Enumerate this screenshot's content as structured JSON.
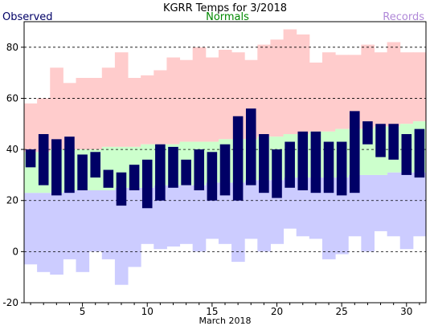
{
  "chart_data": {
    "type": "bar",
    "title": "KGRR Temps for 3/2018",
    "xlabel": "March 2018",
    "ylabel": "",
    "legend": {
      "observed": "Observed",
      "normals": "Normals",
      "records": "Records"
    },
    "colors": {
      "observed": "#000066",
      "normals": "#ccffcc",
      "records": "#ffcccc",
      "records_low": "#ccccff",
      "observed_label": "#000066",
      "normals_label": "#008800",
      "records_label": "#b088d8"
    },
    "ylim": [
      -20,
      90
    ],
    "xlim": [
      0.5,
      31.5
    ],
    "yticks": [
      -20,
      0,
      20,
      40,
      60,
      80
    ],
    "xticks": [
      5,
      10,
      15,
      20,
      25,
      30
    ],
    "grid": "dashed horizontal at 0, 20, 40, 60, 80",
    "days": [
      1,
      2,
      3,
      4,
      5,
      6,
      7,
      8,
      9,
      10,
      11,
      12,
      13,
      14,
      15,
      16,
      17,
      18,
      19,
      20,
      21,
      22,
      23,
      24,
      25,
      26,
      27,
      28,
      29,
      30,
      31
    ],
    "record_high": [
      58,
      60,
      72,
      66,
      68,
      68,
      72,
      78,
      68,
      69,
      71,
      76,
      75,
      80,
      76,
      79,
      78,
      75,
      81,
      83,
      87,
      85,
      74,
      78,
      77,
      77,
      81,
      78,
      82,
      78,
      78
    ],
    "record_low": [
      -5,
      -8,
      -9,
      -3,
      -8,
      0,
      -3,
      -13,
      -6,
      3,
      1,
      2,
      3,
      0,
      5,
      3,
      -4,
      5,
      0,
      3,
      9,
      6,
      5,
      -3,
      -1,
      6,
      0,
      8,
      6,
      1,
      6
    ],
    "normal_high": [
      39,
      39,
      40,
      40,
      40,
      40,
      41,
      41,
      41,
      42,
      42,
      42,
      43,
      43,
      43,
      44,
      44,
      44,
      45,
      45,
      46,
      46,
      47,
      47,
      48,
      48,
      48,
      49,
      49,
      50,
      51
    ],
    "normal_low": [
      23,
      23,
      23,
      24,
      24,
      24,
      24,
      25,
      25,
      25,
      26,
      26,
      26,
      26,
      27,
      27,
      27,
      28,
      28,
      28,
      29,
      29,
      29,
      29,
      29,
      30,
      30,
      30,
      31,
      31,
      31
    ],
    "observed_high": [
      40,
      46,
      44,
      45,
      38,
      39,
      32,
      31,
      34,
      36,
      42,
      41,
      36,
      40,
      39,
      42,
      53,
      56,
      46,
      40,
      43,
      47,
      47,
      43,
      43,
      55,
      51,
      50,
      50,
      46,
      48
    ],
    "observed_low": [
      33,
      26,
      22,
      23,
      24,
      29,
      25,
      18,
      24,
      17,
      20,
      25,
      26,
      24,
      20,
      22,
      20,
      26,
      23,
      21,
      25,
      24,
      23,
      23,
      22,
      23,
      42,
      37,
      36,
      30,
      29
    ]
  }
}
